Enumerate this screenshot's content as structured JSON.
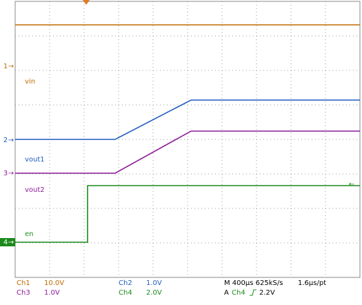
{
  "chart_data": {
    "type": "line",
    "x": [
      0,
      2.1,
      2.1,
      2.9,
      5.1,
      10
    ],
    "xlim": [
      0,
      10
    ],
    "ylim": [
      0,
      8
    ],
    "grid": true,
    "series": [
      {
        "name": "Ch1",
        "scale": "10.0V",
        "label": "vin",
        "marker": "1",
        "color": "#c06a00",
        "values": [
          7.32,
          7.32,
          7.32,
          7.32,
          7.32,
          7.32
        ]
      },
      {
        "name": "Ch2",
        "scale": "1.0V",
        "label": "vout1",
        "marker": "2",
        "color": "#1f5cbf",
        "values": [
          4.0,
          4.0,
          4.0,
          4.0,
          5.14,
          5.14
        ]
      },
      {
        "name": "Ch3",
        "scale": "1.0V",
        "label": "vout2",
        "marker": "3",
        "color": "#8c1a98",
        "values": [
          3.02,
          3.02,
          3.02,
          3.02,
          4.24,
          4.24
        ]
      },
      {
        "name": "Ch4",
        "scale": "2.0V",
        "label": "en",
        "marker": "4",
        "color": "#1a8a1a",
        "values": [
          1.02,
          1.02,
          2.66,
          2.66,
          2.66,
          2.66
        ]
      }
    ],
    "timebase": "M 400µs 625kS/s",
    "resolution": "1.6µs/pt",
    "trigger_mode": "A",
    "trigger_source": "Ch4",
    "trigger_level": "2.2V"
  }
}
